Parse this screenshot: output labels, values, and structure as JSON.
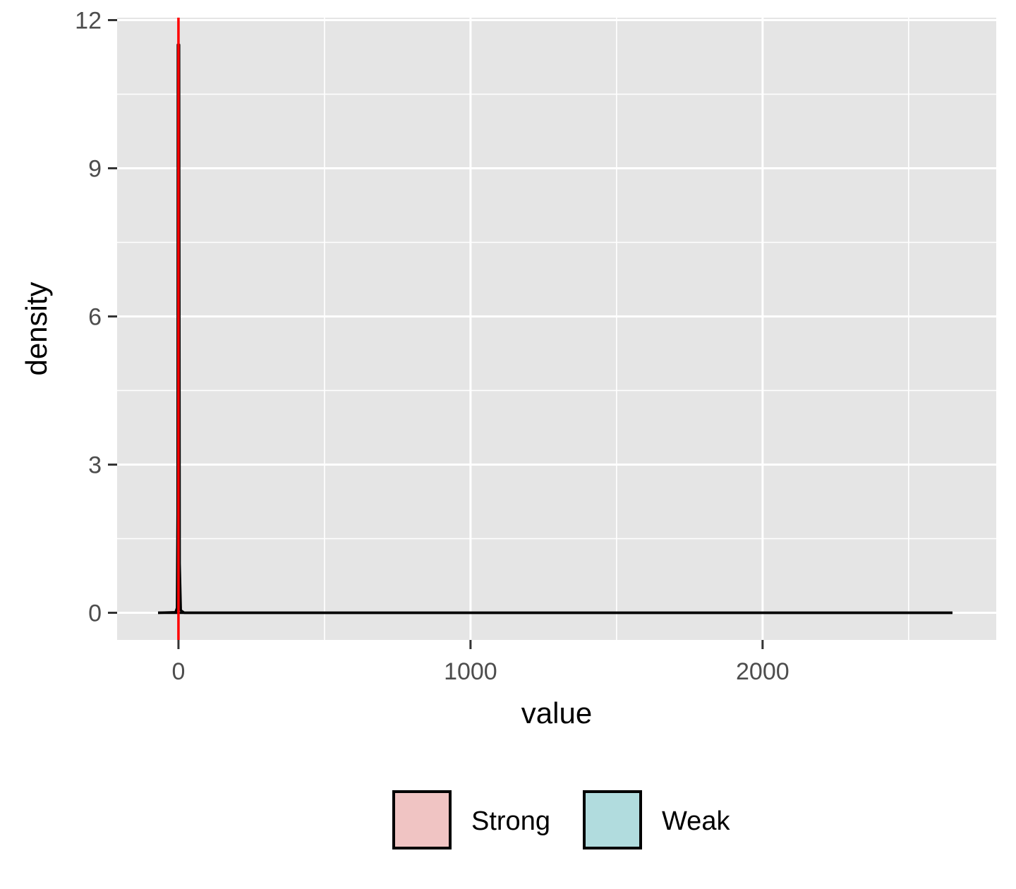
{
  "chart_data": {
    "type": "area",
    "title": "",
    "xlabel": "value",
    "ylabel": "density",
    "xlim": [
      -210,
      2800
    ],
    "ylim": [
      -0.55,
      12.05
    ],
    "x_ticks": [
      0,
      1000,
      2000
    ],
    "x_minor": [
      -500,
      500,
      1500,
      2500
    ],
    "y_ticks": [
      0,
      3,
      6,
      9,
      12
    ],
    "y_minor": [
      1.5,
      4.5,
      7.5,
      10.5
    ],
    "grid": true,
    "legend_position": "bottom",
    "reference_line": {
      "x": 0,
      "color": "#ff0000"
    },
    "series": [
      {
        "name": "Strong",
        "fill": "#f0c4c3",
        "points": [
          [
            -70,
            0
          ],
          [
            -10,
            0.01
          ],
          [
            -5,
            0.1
          ],
          [
            -3,
            2.0
          ],
          [
            -2,
            11.5
          ],
          [
            2,
            11.5
          ],
          [
            4,
            1.0
          ],
          [
            8,
            0.05
          ],
          [
            20,
            0.0
          ],
          [
            2650,
            0
          ]
        ]
      },
      {
        "name": "Weak",
        "fill": "#b1dcde",
        "points": [
          [
            -70,
            0
          ],
          [
            2650,
            0
          ]
        ]
      }
    ],
    "colors": {
      "panel": "#e5e5e5",
      "grid": "#ffffff",
      "line": "#000000",
      "tick": "#333333"
    }
  }
}
